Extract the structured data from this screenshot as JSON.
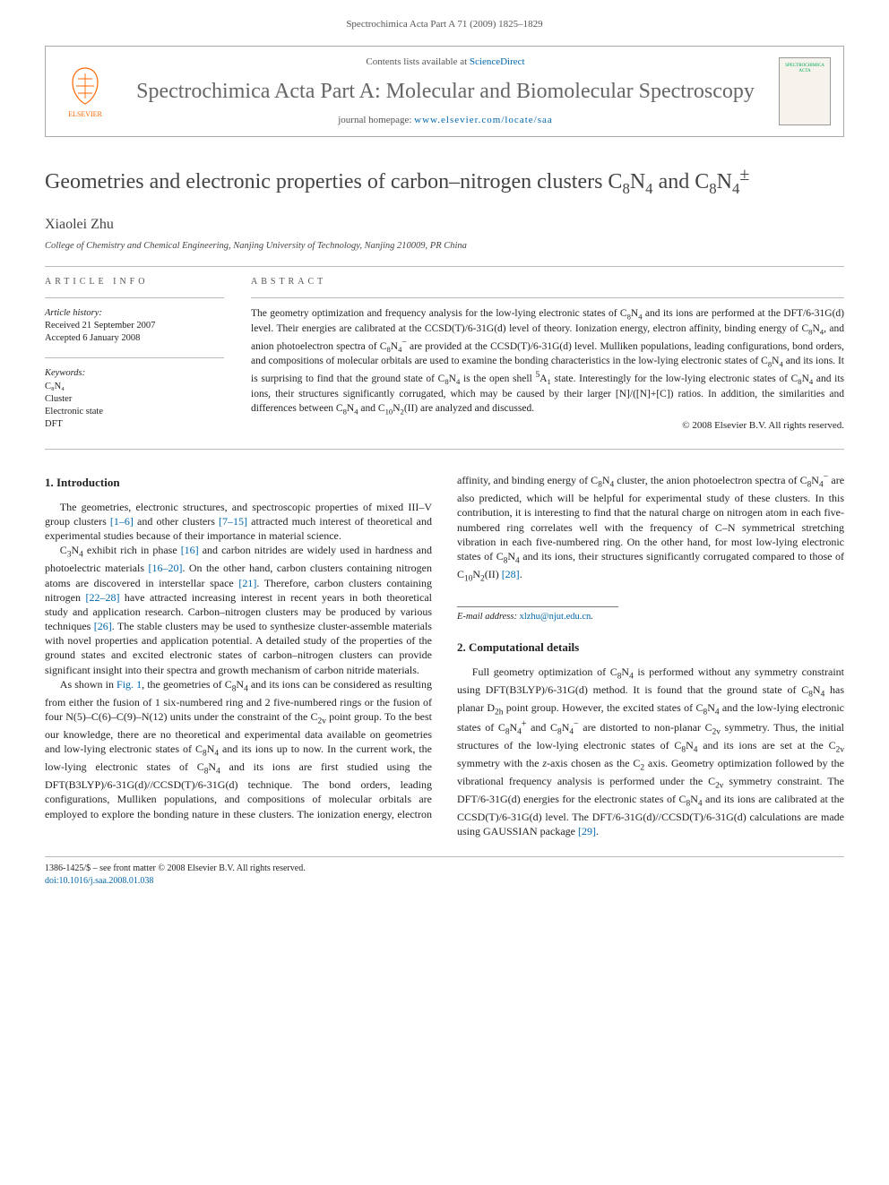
{
  "page_header": "Spectrochimica Acta Part A 71 (2009) 1825–1829",
  "journal_box": {
    "contents_prefix": "Contents lists available at ",
    "contents_link": "ScienceDirect",
    "journal_title": "Spectrochimica Acta Part A: Molecular and Biomolecular Spectroscopy",
    "homepage_prefix": "journal homepage: ",
    "homepage_link": "www.elsevier.com/locate/saa",
    "publisher": "ELSEVIER",
    "cover_label": "SPECTROCHIMICA ACTA"
  },
  "article": {
    "title_html": "Geometries and electronic properties of carbon–nitrogen clusters C<sub>8</sub>N<sub>4</sub> and C<sub>8</sub>N<sub>4</sub><sup>±</sup>",
    "author": "Xiaolei Zhu",
    "affiliation": "College of Chemistry and Chemical Engineering, Nanjing University of Technology, Nanjing 210009, PR China"
  },
  "info": {
    "label": "ARTICLE INFO",
    "history_label": "Article history:",
    "received": "Received 21 September 2007",
    "accepted": "Accepted 6 January 2008",
    "keywords_label": "Keywords:",
    "keywords": [
      "C₈N₄",
      "Cluster",
      "Electronic state",
      "DFT"
    ]
  },
  "abstract": {
    "label": "ABSTRACT",
    "text_html": "The geometry optimization and frequency analysis for the low-lying electronic states of C<sub>8</sub>N<sub>4</sub> and its ions are performed at the DFT/6-31G(d) level. Their energies are calibrated at the CCSD(T)/6-31G(d) level of theory. Ionization energy, electron affinity, binding energy of C<sub>8</sub>N<sub>4</sub>, and anion photoelectron spectra of C<sub>8</sub>N<sub>4</sub><sup>−</sup> are provided at the CCSD(T)/6-31G(d) level. Mulliken populations, leading configurations, bond orders, and compositions of molecular orbitals are used to examine the bonding characteristics in the low-lying electronic states of C<sub>8</sub>N<sub>4</sub> and its ions. It is surprising to find that the ground state of C<sub>8</sub>N<sub>4</sub> is the open shell <sup>5</sup>A<sub>1</sub> state. Interestingly for the low-lying electronic states of C<sub>8</sub>N<sub>4</sub> and its ions, their structures significantly corrugated, which may be caused by their larger [N]/([N]+[C]) ratios. In addition, the similarities and differences between C<sub>8</sub>N<sub>4</sub> and C<sub>10</sub>N<sub>2</sub>(II) are analyzed and discussed.",
    "copyright": "© 2008 Elsevier B.V. All rights reserved."
  },
  "sections": {
    "s1_title": "1. Introduction",
    "s1_p1_html": "The geometries, electronic structures, and spectroscopic properties of mixed III–V group clusters <a href='#'>[1–6]</a> and other clusters <a href='#'>[7–15]</a> attracted much interest of theoretical and experimental studies because of their importance in material science.",
    "s1_p2_html": "C<sub>3</sub>N<sub>4</sub> exhibit rich in phase <a href='#'>[16]</a> and carbon nitrides are widely used in hardness and photoelectric materials <a href='#'>[16–20]</a>. On the other hand, carbon clusters containing nitrogen atoms are discovered in interstellar space <a href='#'>[21]</a>. Therefore, carbon clusters containing nitrogen <a href='#'>[22–28]</a> have attracted increasing interest in recent years in both theoretical study and application research. Carbon–nitrogen clusters may be produced by various techniques <a href='#'>[26]</a>. The stable clusters may be used to synthesize cluster-assemble materials with novel properties and application potential. A detailed study of the properties of the ground states and excited electronic states of carbon–nitrogen clusters can provide significant insight into their spectra and growth mechanism of carbon nitride materials.",
    "s1_p3_html": "As shown in <a href='#'>Fig. 1</a>, the geometries of C<sub>8</sub>N<sub>4</sub> and its ions can be considered as resulting from either the fusion of 1 six-numbered ring and 2 five-numbered rings or the fusion of four N(5)–C(6)–C(9)–N(12) units under the constraint of the C<sub>2v</sub> point group. To the best our knowledge, there are no theoretical and experimental data available on geometries and low-lying electronic states of C<sub>8</sub>N<sub>4</sub> and its ions up to now. In the current work, the low-lying electronic states of C<sub>8</sub>N<sub>4</sub> and its ions are first studied using the DFT(B3LYP)/6-31G(d)//CCSD(T)/6-31G(d) technique. The bond orders, leading configurations, Mulliken populations, and compositions of molecular orbitals are employed to explore the bonding nature in these clusters. The ionization energy, electron affinity, and binding energy of C<sub>8</sub>N<sub>4</sub> cluster, the anion photoelectron spectra of C<sub>8</sub>N<sub>4</sub><sup>−</sup> are also predicted, which will be helpful for experimental study of these clusters. In this contribution, it is interesting to find that the natural charge on nitrogen atom in each five-numbered ring correlates well with the frequency of C–N symmetrical stretching vibration in each five-numbered ring. On the other hand, for most low-lying electronic states of C<sub>8</sub>N<sub>4</sub> and its ions, their structures significantly corrugated compared to those of C<sub>10</sub>N<sub>2</sub>(II) <a href='#'>[28]</a>.",
    "s2_title": "2. Computational details",
    "s2_p1_html": "Full geometry optimization of C<sub>8</sub>N<sub>4</sub> is performed without any symmetry constraint using DFT(B3LYP)/6-31G(d) method. It is found that the ground state of C<sub>8</sub>N<sub>4</sub> has planar D<sub>2h</sub> point group. However, the excited states of C<sub>8</sub>N<sub>4</sub> and the low-lying electronic states of C<sub>8</sub>N<sub>4</sub><sup>+</sup> and C<sub>8</sub>N<sub>4</sub><sup>−</sup> are distorted to non-planar C<sub>2v</sub> symmetry. Thus, the initial structures of the low-lying electronic states of C<sub>8</sub>N<sub>4</sub> and its ions are set at the C<sub>2v</sub> symmetry with the <i>z</i>-axis chosen as the C<sub>2</sub> axis. Geometry optimization followed by the vibrational frequency analysis is performed under the C<sub>2v</sub> symmetry constraint. The DFT/6-31G(d) energies for the electronic states of C<sub>8</sub>N<sub>4</sub> and its ions are calibrated at the CCSD(T)/6-31G(d) level. The DFT/6-31G(d)//CCSD(T)/6-31G(d) calculations are made using GAUSSIAN package <a href='#'>[29]</a>."
  },
  "email": {
    "label": "E-mail address: ",
    "address": "xlzhu@njut.edu.cn"
  },
  "footer": {
    "line1": "1386-1425/$ – see front matter © 2008 Elsevier B.V. All rights reserved.",
    "doi": "doi:10.1016/j.saa.2008.01.038"
  },
  "colors": {
    "link": "#0066aa",
    "elsevier": "#ff6600",
    "heading": "#555555"
  }
}
